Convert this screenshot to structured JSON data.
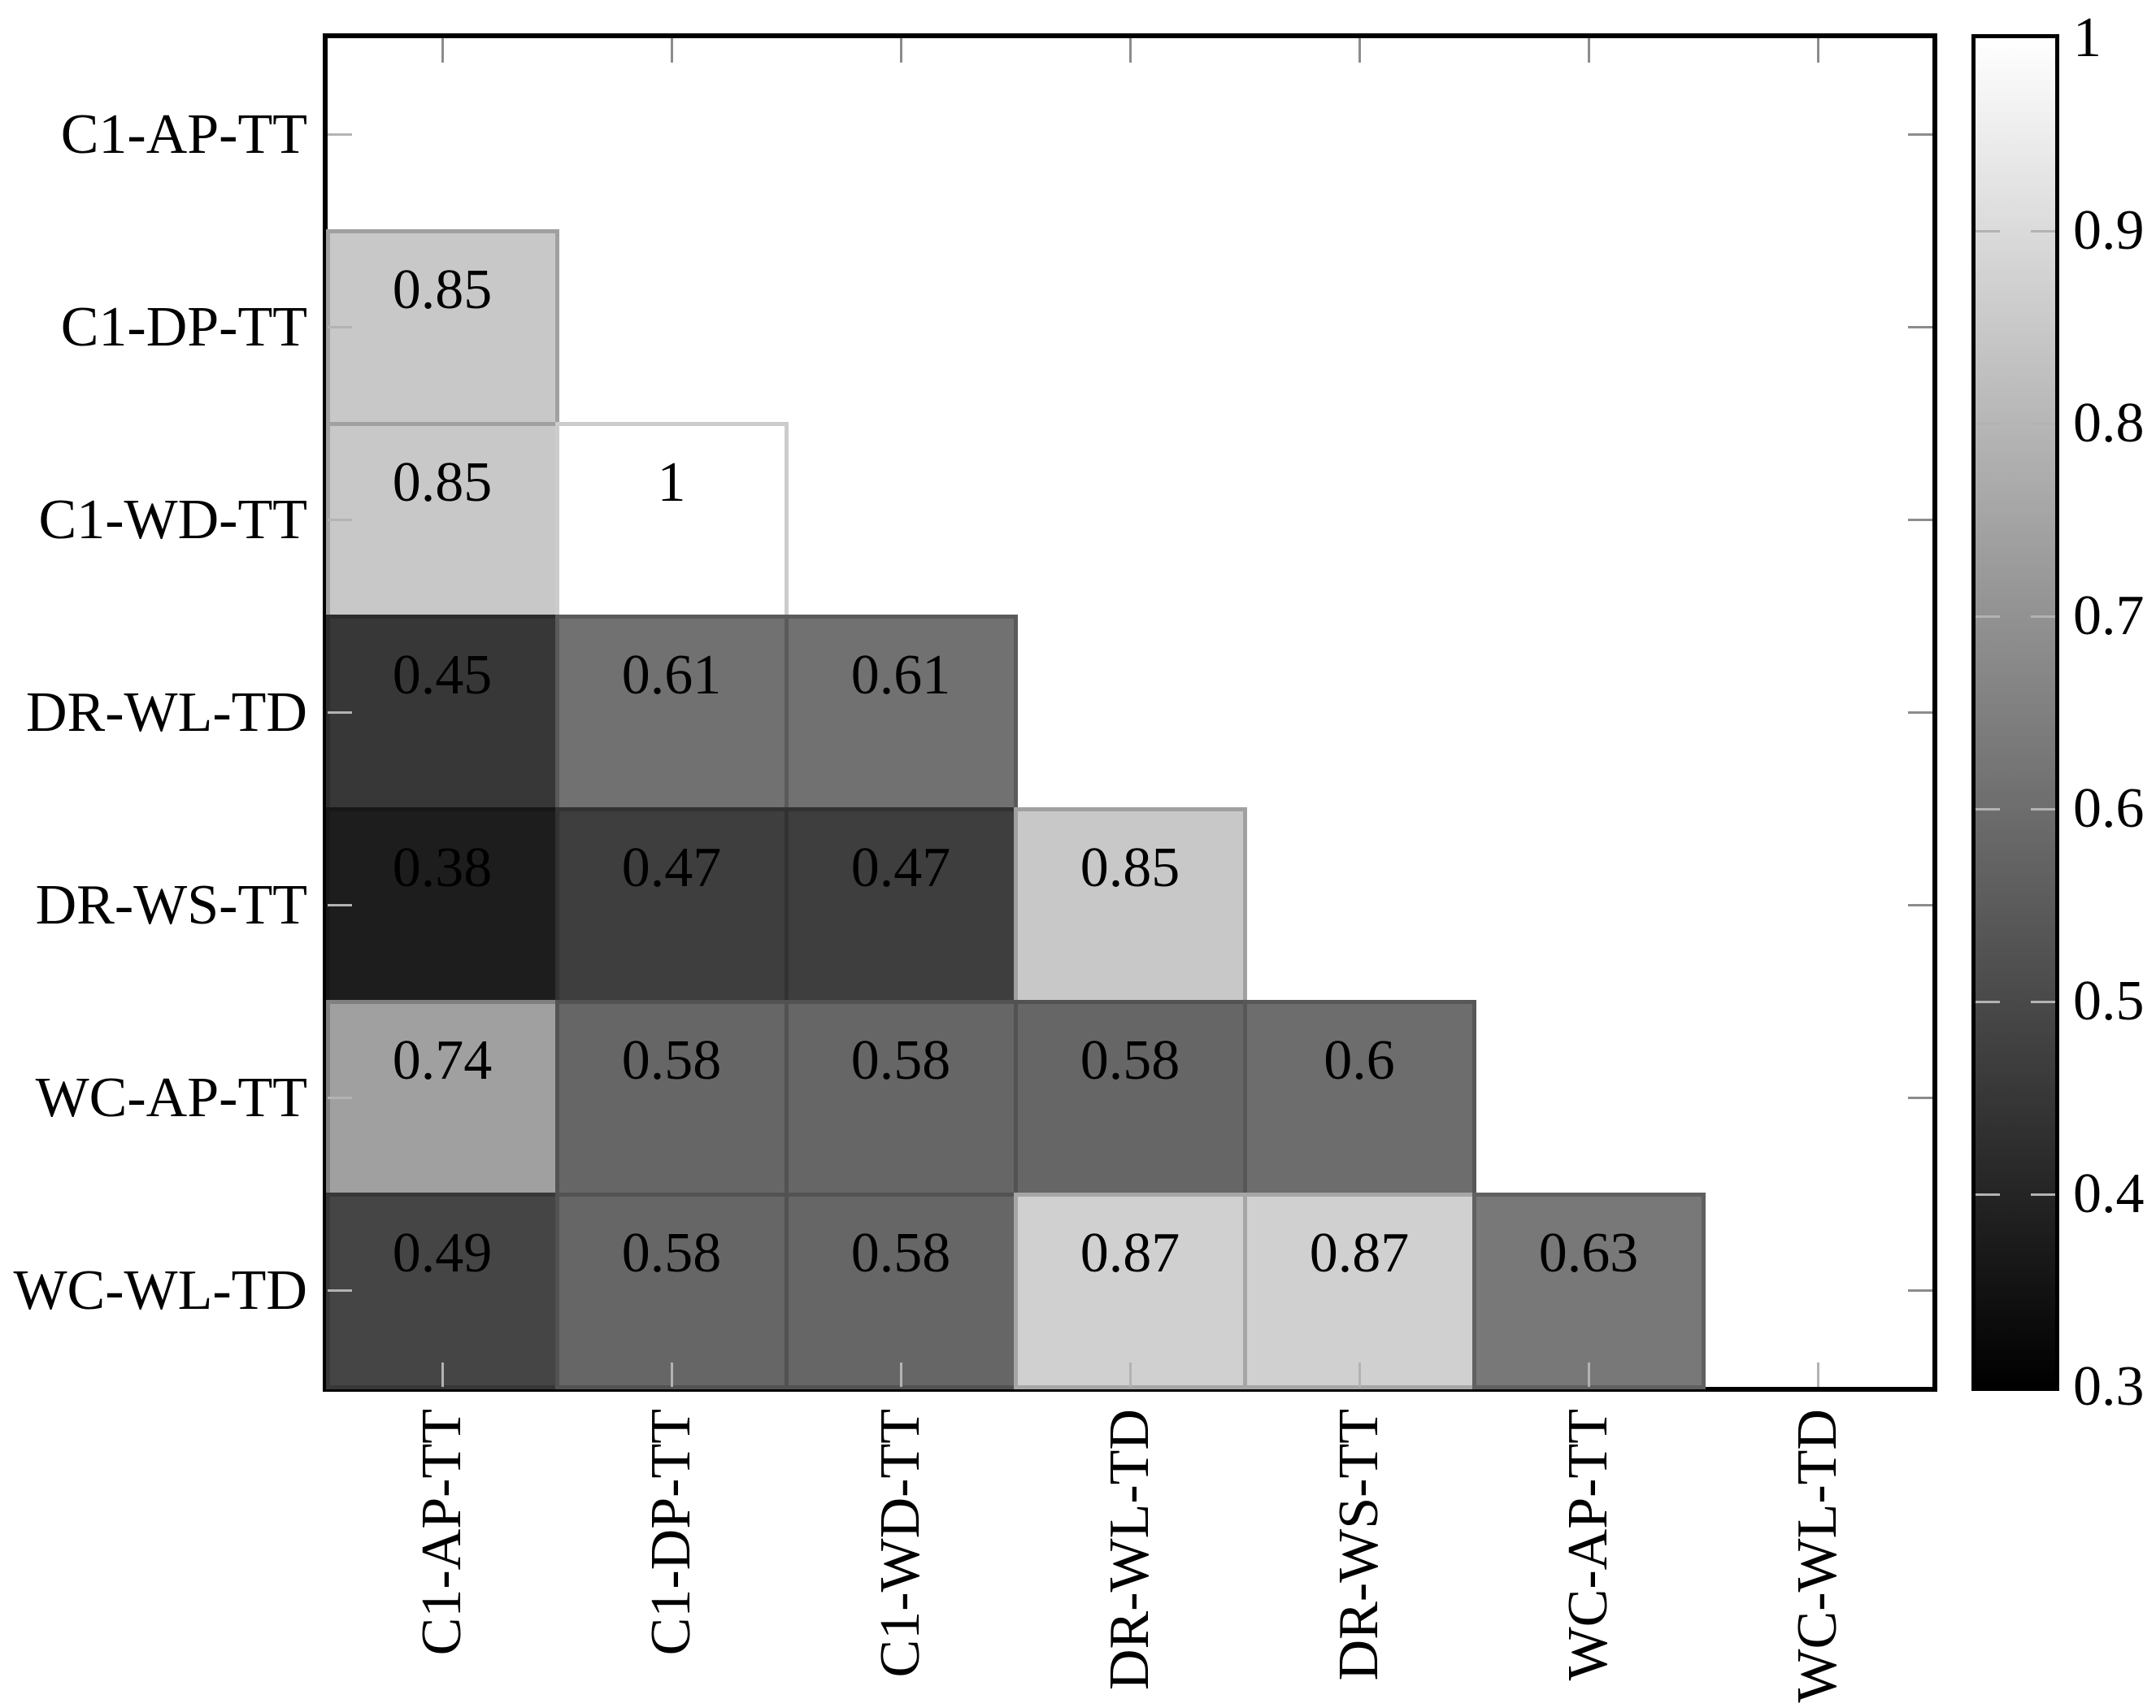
{
  "figure": {
    "background_color": "#ffffff",
    "text_color": "#000000",
    "frame_color": "#000000",
    "tick_color": "#8c8c8c"
  },
  "chart_data": {
    "type": "heatmap",
    "subtype": "lower-triangular correlation matrix",
    "title": "",
    "xlabel": "",
    "ylabel": "",
    "grid": false,
    "categories": [
      "C1-AP-TT",
      "C1-DP-TT",
      "C1-WD-TT",
      "DR-WL-TD",
      "DR-WS-TT",
      "WC-AP-TT",
      "WC-WL-TD"
    ],
    "x_tick_labels": [
      "C1-AP-TT",
      "C1-DP-TT",
      "C1-WD-TT",
      "DR-WL-TD",
      "DR-WS-TT",
      "WC-AP-TT",
      "WC-WL-TD"
    ],
    "y_tick_labels": [
      "C1-AP-TT",
      "C1-DP-TT",
      "C1-WD-TT",
      "DR-WL-TD",
      "DR-WS-TT",
      "WC-AP-TT",
      "WC-WL-TD"
    ],
    "matrix_lower_triangle": [
      [],
      [
        0.85
      ],
      [
        0.85,
        1
      ],
      [
        0.45,
        0.61,
        0.61
      ],
      [
        0.38,
        0.47,
        0.47,
        0.85
      ],
      [
        0.74,
        0.58,
        0.58,
        0.58,
        0.6
      ],
      [
        0.49,
        0.58,
        0.58,
        0.87,
        0.87,
        0.63
      ]
    ],
    "colormap": {
      "name": "grayscale",
      "min_value": 0.3,
      "max_value": 1,
      "min_color": "#000000",
      "max_color": "#ffffff"
    },
    "colorbar": {
      "position": "right",
      "tick_values": [
        1,
        0.9,
        0.8,
        0.7,
        0.6,
        0.5,
        0.4,
        0.3
      ],
      "tick_labels": [
        "1",
        "0.9",
        "0.8",
        "0.7",
        "0.6",
        "0.5",
        "0.4",
        "0.3"
      ]
    }
  }
}
